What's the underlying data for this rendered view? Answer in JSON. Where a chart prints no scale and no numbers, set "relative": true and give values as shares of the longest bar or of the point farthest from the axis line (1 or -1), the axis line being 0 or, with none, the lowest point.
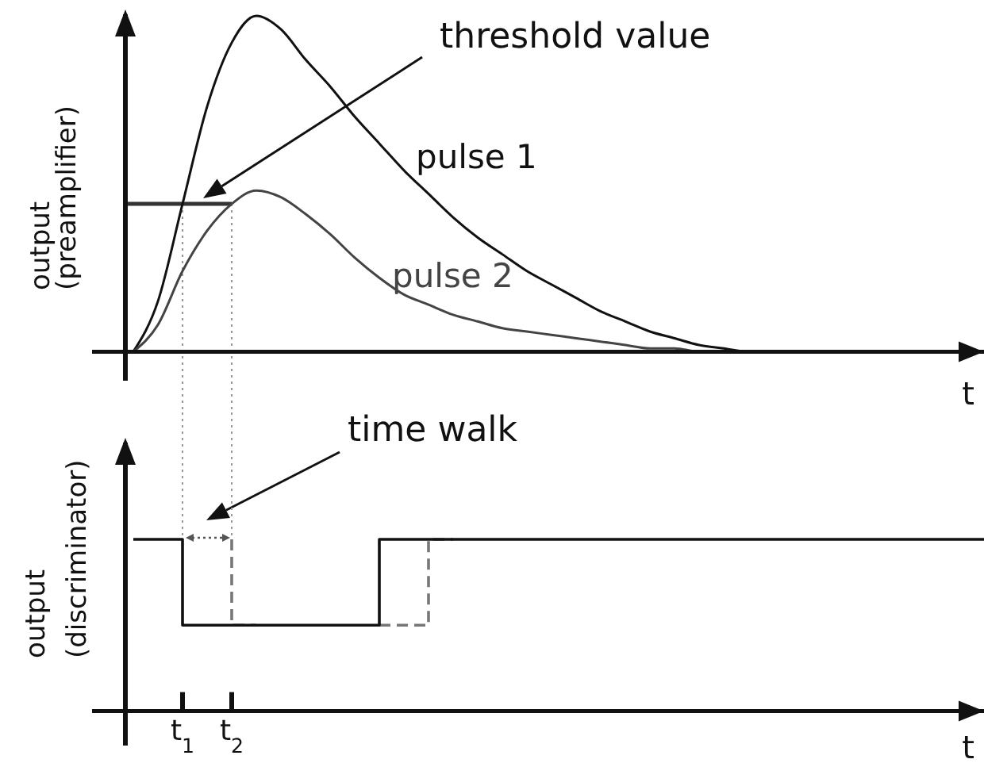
{
  "chart_data": [
    {
      "type": "line",
      "ylabel": "output (preamplifier)",
      "xlabel": "t",
      "relative": true,
      "tick_labels": false,
      "categories": [
        null,
        null,
        "t$_{1}$",
        null,
        "t$_{2}$",
        null,
        null,
        null,
        null,
        null,
        null,
        null,
        null,
        null,
        null,
        null,
        null,
        null,
        null,
        null,
        null,
        null,
        null,
        null,
        null,
        null,
        null,
        null,
        null,
        null,
        null,
        null,
        null,
        null,
        null,
        null
      ],
      "series": [
        {
          "name": "pulse 1",
          "color": "#111111",
          "values": [
            0,
            0.15,
            0.44,
            0.73,
            0.92,
            1,
            0.96,
            0.87,
            0.79,
            0.7,
            0.62,
            0.54,
            0.47,
            0.4,
            0.34,
            0.29,
            0.24,
            0.2,
            0.16,
            0.12,
            0.09,
            0.06,
            0.04,
            0.02,
            0.01,
            0,
            0,
            0,
            0,
            0,
            0,
            0,
            0,
            0,
            0,
            0
          ]
        },
        {
          "name": "pulse 2",
          "color": "#444444",
          "values": [
            0,
            0.08,
            0.24,
            0.36,
            0.44,
            0.48,
            0.46,
            0.41,
            0.35,
            0.28,
            0.22,
            0.17,
            0.14,
            0.11,
            0.09,
            0.07,
            0.06,
            0.05,
            0.04,
            0.03,
            0.02,
            0.01,
            0.01,
            0,
            0,
            0,
            0,
            0,
            0,
            0,
            0,
            0,
            0,
            0,
            0,
            0
          ]
        }
      ],
      "ref_lines": [
        {
          "axis": "y",
          "value": 0.44,
          "color": "#333333"
        },
        {
          "axis": "x",
          "value": "t$_{1}$",
          "color": "#999999",
          "line_style": "dotted"
        },
        {
          "axis": "x",
          "value": "t$_{2}$",
          "color": "#999999",
          "line_style": "dotted"
        }
      ],
      "annotations": [
        "threshold value"
      ]
    },
    {
      "type": "step",
      "ylabel": "output (discriminator)",
      "xlabel": "t",
      "relative": true,
      "categories": [
        null,
        null,
        "t$_{1}$",
        null,
        "t$_{2}$",
        null,
        null,
        null,
        null,
        null,
        null,
        null,
        null,
        null,
        null,
        null,
        null,
        null,
        null,
        null,
        null,
        null,
        null,
        null,
        null,
        null,
        null,
        null,
        null,
        null,
        null,
        null,
        null,
        null,
        null,
        null
      ],
      "series": [
        {
          "color": "#777777",
          "line_style": "dashed",
          "values": [
            null,
            null,
            null,
            null,
            1,
            0.5,
            null,
            null,
            null,
            null,
            0.5,
            0.5,
            0.5,
            1,
            null,
            null,
            null,
            null,
            null,
            null,
            null,
            null,
            null,
            null,
            null,
            null,
            null,
            null,
            null,
            null,
            null,
            null,
            null,
            null,
            null,
            null
          ]
        },
        {
          "color": "#111111",
          "values": [
            1,
            1,
            1,
            0.5,
            0.5,
            0.5,
            0.5,
            0.5,
            0.5,
            0.5,
            0.5,
            1,
            1,
            1,
            1,
            1,
            1,
            1,
            1,
            1,
            1,
            1,
            1,
            1,
            1,
            1,
            1,
            1,
            1,
            1,
            1,
            1,
            1,
            1,
            1,
            1
          ]
        }
      ],
      "annotations": [
        "time walk"
      ]
    }
  ]
}
